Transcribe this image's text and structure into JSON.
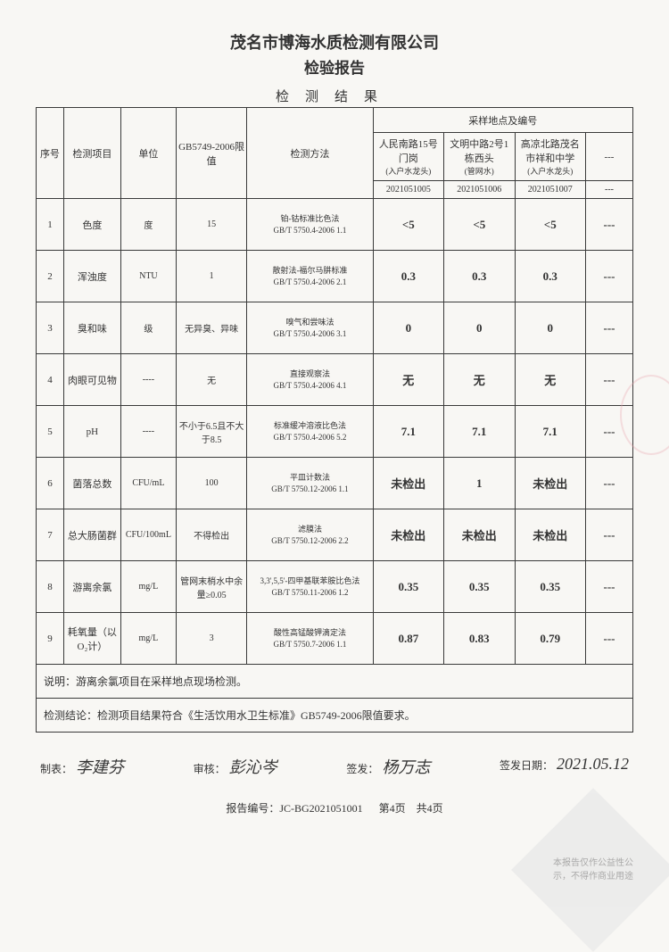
{
  "header": {
    "company": "茂名市博海水质检测有限公司",
    "report_title": "检验报告",
    "section": "检测结果"
  },
  "table": {
    "col_seq": "序号",
    "col_item": "检测项目",
    "col_unit": "单位",
    "col_limit": "GB5749-2006限值",
    "col_method": "检测方法",
    "col_location_header": "采样地点及编号",
    "locations": [
      {
        "name": "人民南路15号门岗",
        "type": "(入户水龙头)",
        "code": "2021051005"
      },
      {
        "name": "文明中路2号1栋西头",
        "type": "(管网水)",
        "code": "2021051006"
      },
      {
        "name": "高凉北路茂名市祥和中学",
        "type": "(入户水龙头)",
        "code": "2021051007"
      },
      {
        "name": "---",
        "type": "---",
        "code": "---"
      }
    ],
    "rows": [
      {
        "seq": "1",
        "item": "色度",
        "unit": "度",
        "limit": "15",
        "method": "铂-钴标准比色法\nGB/T 5750.4-2006 1.1",
        "v1": "<5",
        "v2": "<5",
        "v3": "<5",
        "v4": "---"
      },
      {
        "seq": "2",
        "item": "浑浊度",
        "unit": "NTU",
        "limit": "1",
        "method": "散射法-福尔马肼标准\nGB/T 5750.4-2006 2.1",
        "v1": "0.3",
        "v2": "0.3",
        "v3": "0.3",
        "v4": "---"
      },
      {
        "seq": "3",
        "item": "臭和味",
        "unit": "级",
        "limit": "无异臭、异味",
        "method": "嗅气和尝味法\nGB/T 5750.4-2006 3.1",
        "v1": "0",
        "v2": "0",
        "v3": "0",
        "v4": "---"
      },
      {
        "seq": "4",
        "item": "肉眼可见物",
        "unit": "----",
        "limit": "无",
        "method": "直接观察法\nGB/T 5750.4-2006 4.1",
        "v1": "无",
        "v2": "无",
        "v3": "无",
        "v4": "---"
      },
      {
        "seq": "5",
        "item": "pH",
        "unit": "----",
        "limit": "不小于6.5且不大于8.5",
        "method": "标准缓冲溶液比色法\nGB/T 5750.4-2006 5.2",
        "v1": "7.1",
        "v2": "7.1",
        "v3": "7.1",
        "v4": "---"
      },
      {
        "seq": "6",
        "item": "菌落总数",
        "unit": "CFU/mL",
        "limit": "100",
        "method": "平皿计数法\nGB/T 5750.12-2006 1.1",
        "v1": "未检出",
        "v2": "1",
        "v3": "未检出",
        "v4": "---"
      },
      {
        "seq": "7",
        "item": "总大肠菌群",
        "unit": "CFU/100mL",
        "limit": "不得检出",
        "method": "滤膜法\nGB/T 5750.12-2006 2.2",
        "v1": "未检出",
        "v2": "未检出",
        "v3": "未检出",
        "v4": "---"
      },
      {
        "seq": "8",
        "item": "游离余氯",
        "unit": "mg/L",
        "limit": "管网末梢水中余量≥0.05",
        "method": "3,3',5,5'-四甲基联苯胺比色法\nGB/T 5750.11-2006 1.2",
        "v1": "0.35",
        "v2": "0.35",
        "v3": "0.35",
        "v4": "---"
      },
      {
        "seq": "9",
        "item": "耗氧量（以O₂计）",
        "unit": "mg/L",
        "limit": "3",
        "method": "酸性高锰酸钾滴定法\nGB/T 5750.7-2006 1.1",
        "v1": "0.87",
        "v2": "0.83",
        "v3": "0.79",
        "v4": "---"
      }
    ],
    "note_label": "说明：",
    "note": "游离余氯项目在采样地点现场检测。",
    "conclusion_label": "检测结论：",
    "conclusion": "检测项目结果符合《生活饮用水卫生标准》GB5749-2006限值要求。"
  },
  "footer": {
    "preparer_label": "制表：",
    "preparer_sig": "李建芬",
    "reviewer_label": "审核：",
    "reviewer_sig": "彭沁岑",
    "issuer_label": "签发：",
    "issuer_sig": "杨万志",
    "date_label": "签发日期：",
    "date": "2021.05.12"
  },
  "report_info": {
    "number_label": "报告编号：",
    "number": "JC-BG2021051001",
    "page": "第4页　共4页"
  },
  "watermark": {
    "line1": "本报告仅作公益性公",
    "line2": "示，不得作商业用途"
  }
}
